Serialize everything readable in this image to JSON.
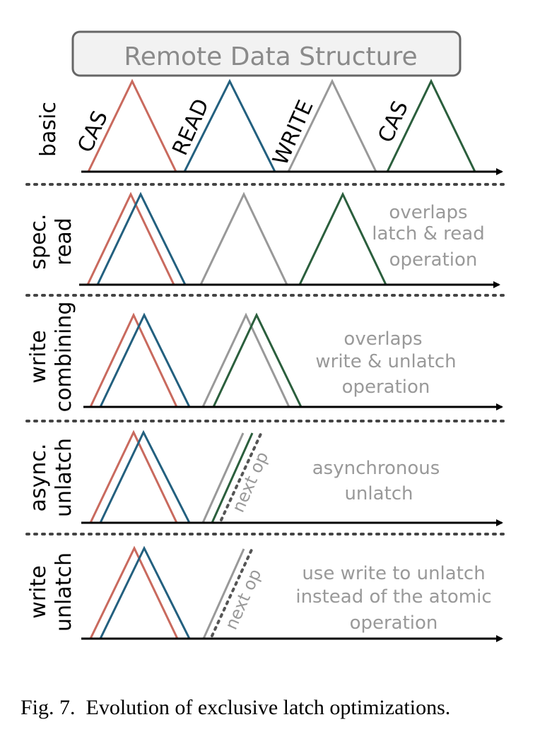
{
  "header": {
    "title": "Remote Data Structure"
  },
  "caption": "Fig. 7.  Evolution of exclusive latch optimizations.",
  "colors": {
    "cas": "#c96a5e",
    "read": "#23607f",
    "write": "#999999",
    "unlatch": "#2b5f3d",
    "note": "#999999",
    "axis": "#000000"
  },
  "rows": [
    {
      "label_lines": [
        "basic"
      ],
      "op_labels": [
        "CAS",
        "READ",
        "WRITE",
        "CAS"
      ],
      "note_lines": []
    },
    {
      "label_lines": [
        "spec.",
        "read"
      ],
      "op_labels": [],
      "note_lines": [
        "overlaps",
        "latch & read",
        "operation"
      ]
    },
    {
      "label_lines": [
        "write",
        "combining"
      ],
      "op_labels": [],
      "note_lines": [
        "overlaps",
        "write & unlatch",
        "operation"
      ]
    },
    {
      "label_lines": [
        "async.",
        "unlatch"
      ],
      "op_labels": [
        "next op"
      ],
      "note_lines": [
        "asynchronous",
        "unlatch"
      ]
    },
    {
      "label_lines": [
        "write",
        "unlatch"
      ],
      "op_labels": [
        "next op"
      ],
      "note_lines": [
        "use write to unlatch",
        "instead of the atomic",
        "operation"
      ]
    }
  ]
}
